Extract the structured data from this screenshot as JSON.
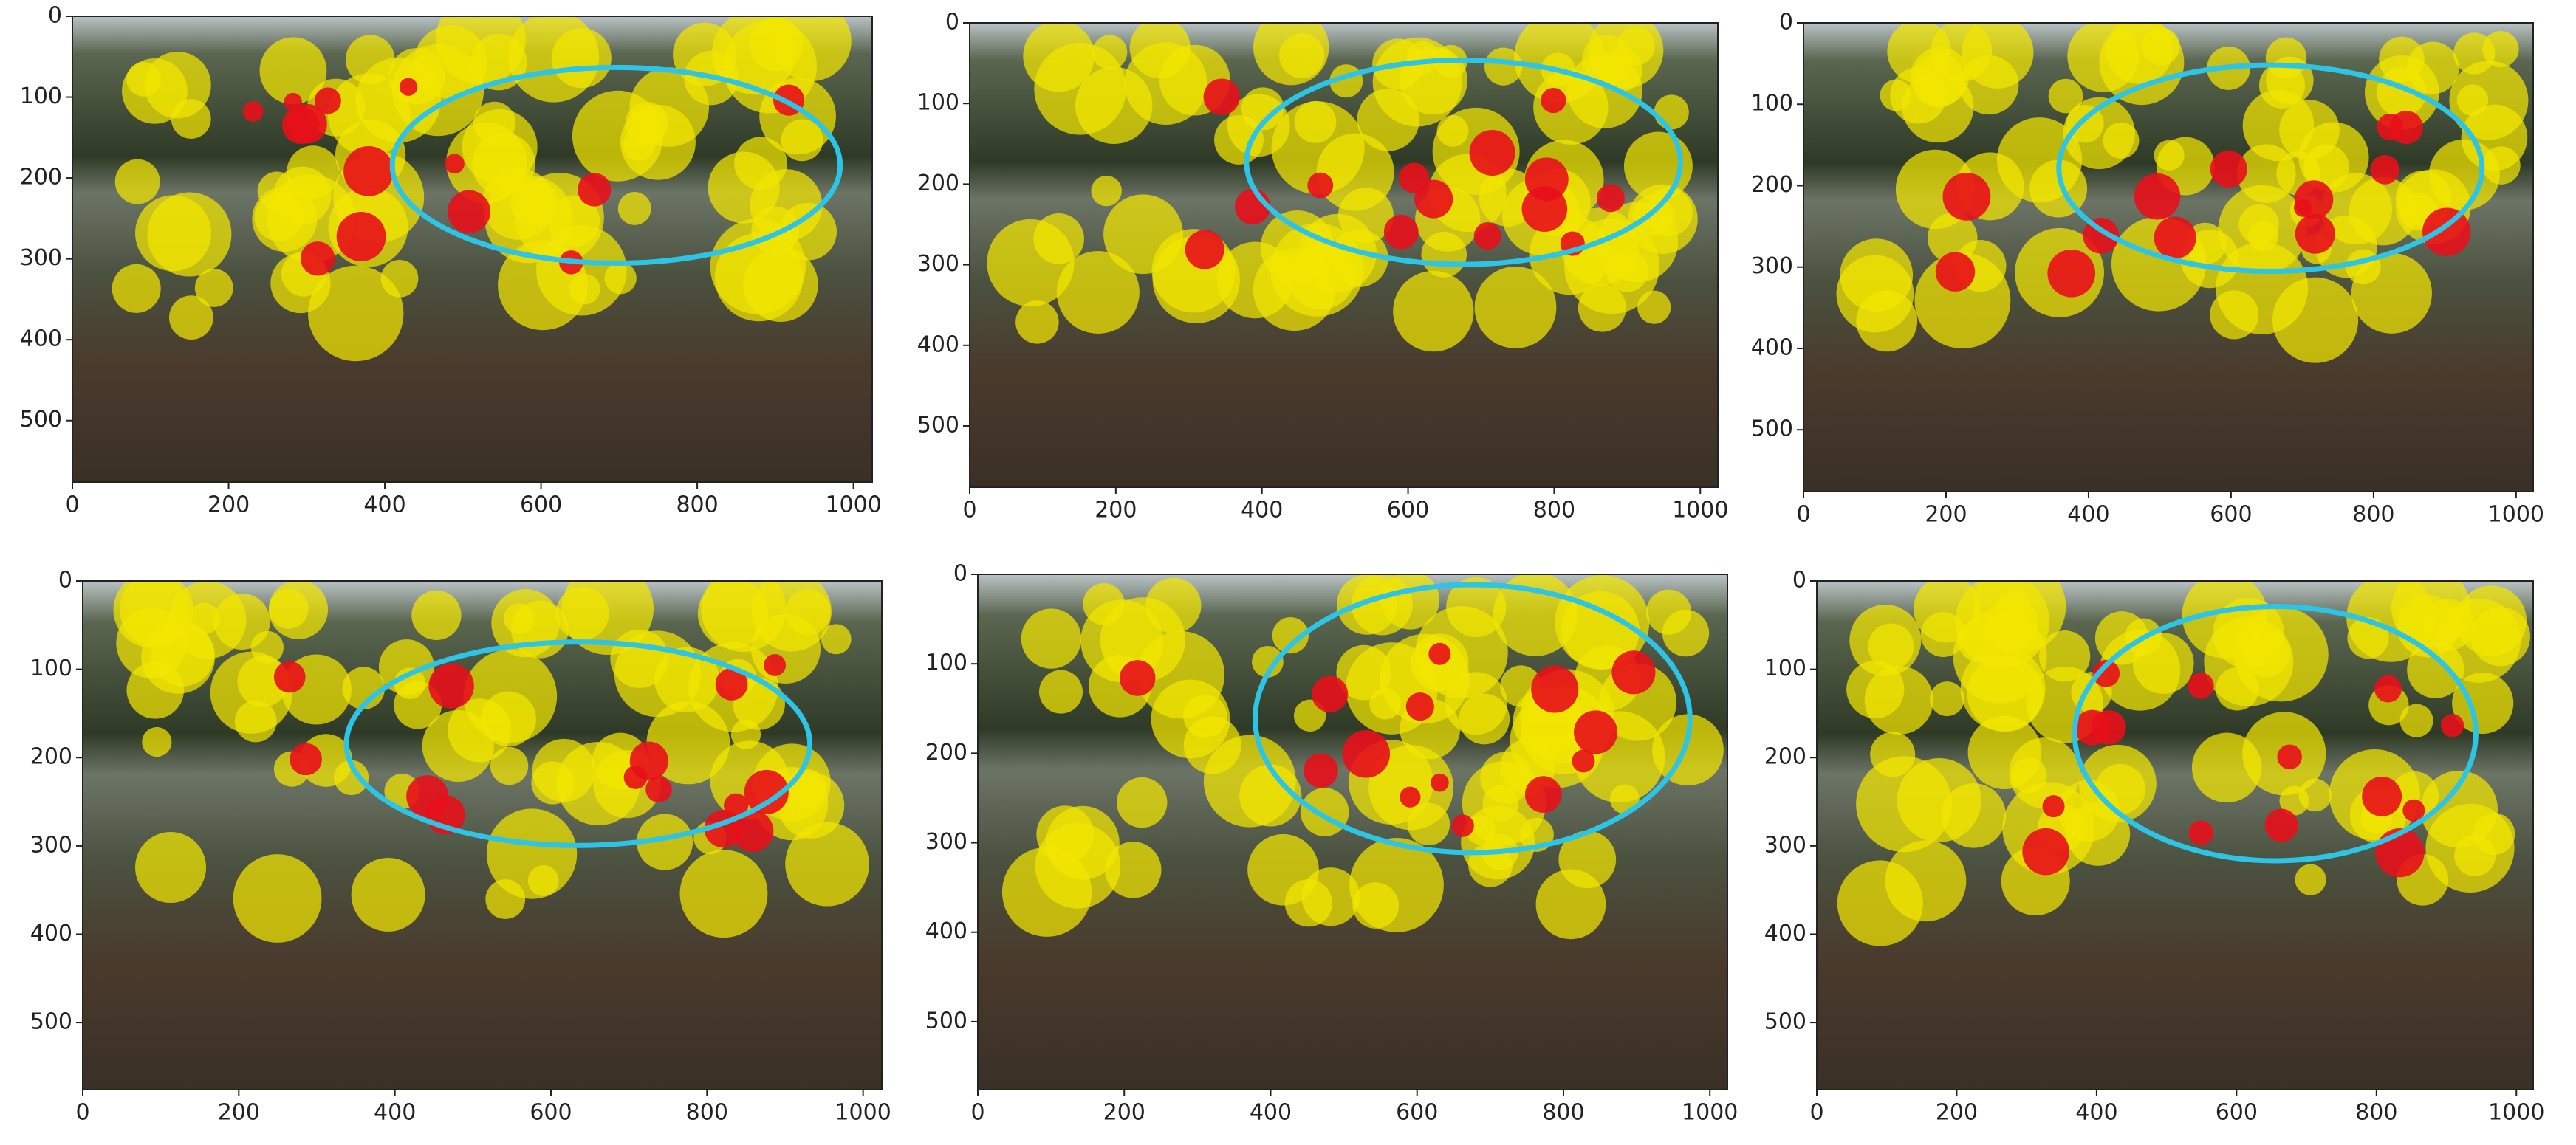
{
  "chart_data": [
    {
      "type": "image",
      "xlim": [
        0,
        1024
      ],
      "ylim": [
        576,
        0
      ],
      "xticks": [
        0,
        200,
        400,
        600,
        800,
        1000
      ],
      "yticks": [
        0,
        100,
        200,
        300,
        400,
        500
      ]
    },
    {
      "type": "image",
      "xlim": [
        0,
        1024
      ],
      "ylim": [
        576,
        0
      ],
      "xticks": [
        0,
        200,
        400,
        600,
        800,
        1000
      ],
      "yticks": [
        0,
        100,
        200,
        300,
        400,
        500
      ]
    },
    {
      "type": "image",
      "xlim": [
        0,
        1024
      ],
      "ylim": [
        576,
        0
      ],
      "xticks": [
        0,
        200,
        400,
        600,
        800,
        1000
      ],
      "yticks": [
        0,
        100,
        200,
        300,
        400,
        500
      ]
    },
    {
      "type": "image",
      "xlim": [
        0,
        1024
      ],
      "ylim": [
        576,
        0
      ],
      "xticks": [
        0,
        200,
        400,
        600,
        800,
        1000
      ],
      "yticks": [
        0,
        100,
        200,
        300,
        400,
        500
      ]
    },
    {
      "type": "image",
      "xlim": [
        0,
        1024
      ],
      "ylim": [
        576,
        0
      ],
      "xticks": [
        0,
        200,
        400,
        600,
        800,
        1000
      ],
      "yticks": [
        0,
        100,
        200,
        300,
        400,
        500
      ]
    },
    {
      "type": "image",
      "xlim": [
        0,
        1024
      ],
      "ylim": [
        576,
        0
      ],
      "xticks": [
        0,
        200,
        400,
        600,
        800,
        1000
      ],
      "yticks": [
        0,
        100,
        200,
        300,
        400,
        500
      ]
    }
  ]
}
